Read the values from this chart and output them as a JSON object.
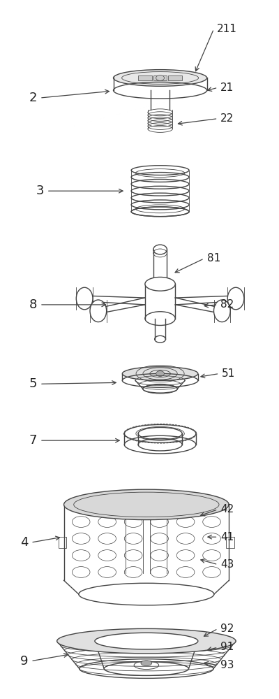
{
  "bg_color": "#ffffff",
  "line_color": "#444444",
  "label_color": "#222222",
  "fig_w": 4.0,
  "fig_h": 10.0,
  "dpi": 100
}
